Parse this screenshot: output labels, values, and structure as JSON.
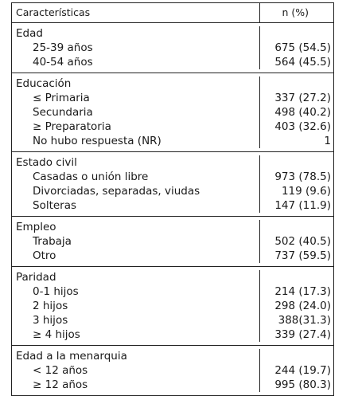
{
  "header": {
    "characteristic": "Características",
    "value": "n (%)"
  },
  "sections": [
    {
      "title": "Edad",
      "rows": [
        {
          "label": "25-39 años",
          "value": "675 (54.5)"
        },
        {
          "label": "40-54 años",
          "value": "564 (45.5)"
        }
      ]
    },
    {
      "title": "Educación",
      "rows": [
        {
          "label": "≤ Primaria",
          "value": "337 (27.2)"
        },
        {
          "label": "Secundaria",
          "value": "498 (40.2)"
        },
        {
          "label": "≥ Preparatoria",
          "value": "403 (32.6)"
        },
        {
          "label": "No hubo respuesta (NR)",
          "value": "1"
        }
      ]
    },
    {
      "title": "Estado civil",
      "rows": [
        {
          "label": "Casadas o unión libre",
          "value": "973 (78.5)"
        },
        {
          "label": "Divorciadas, separadas, viudas",
          "value": "119 (9.6)"
        },
        {
          "label": "Solteras",
          "value": "147 (11.9)"
        }
      ]
    },
    {
      "title": "Empleo",
      "rows": [
        {
          "label": "Trabaja",
          "value": "502 (40.5)"
        },
        {
          "label": "Otro",
          "value": "737 (59.5)"
        }
      ]
    },
    {
      "title": "Paridad",
      "rows": [
        {
          "label": "0-1 hijos",
          "value": "214 (17.3)"
        },
        {
          "label": "2 hijos",
          "value": "298 (24.0)"
        },
        {
          "label": "3 hijos",
          "value": "388(31.3)"
        },
        {
          "label": "≥ 4 hijos",
          "value": "339 (27.4)"
        }
      ]
    },
    {
      "title": "Edad a la menarquia",
      "rows": [
        {
          "label": "< 12 años",
          "value": "244 (19.7)"
        },
        {
          "label": "≥ 12 años",
          "value": "995 (80.3)"
        }
      ]
    }
  ]
}
